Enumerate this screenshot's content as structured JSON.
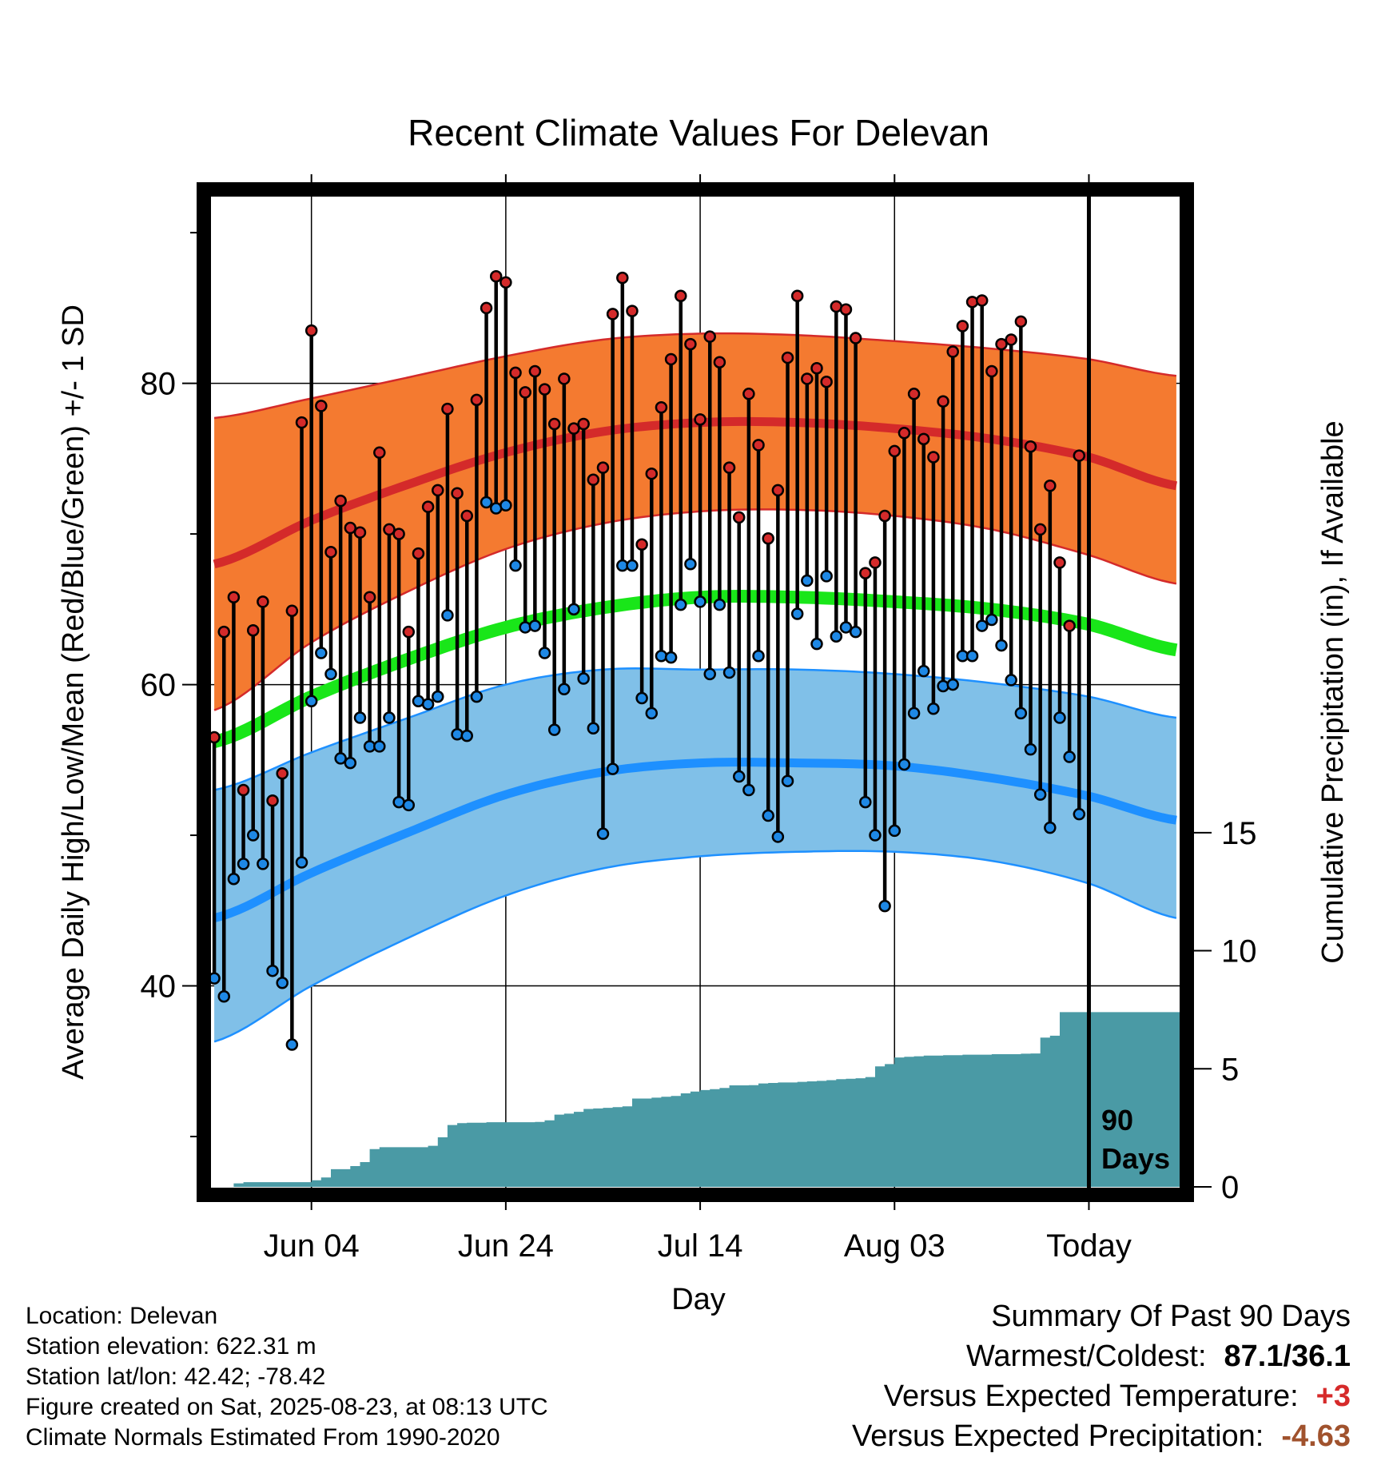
{
  "chart_data": {
    "type": "line",
    "title": "Recent Climate Values For Delevan",
    "xlabel": "Day",
    "ylabel": "Average Daily High/Low/Mean (Red/Blue/Green) +/- 1 SD",
    "y2label": "Cumulative Precipitation (in), If Available",
    "x_ticks": [
      "Jun 04",
      "Jun 24",
      "Jul 14",
      "Aug 03",
      "Today"
    ],
    "x_tick_days": [
      10,
      30,
      50,
      70,
      90
    ],
    "x_range_days": [
      -0.5,
      99.5
    ],
    "ylim": [
      26.5,
      92.5
    ],
    "y_ticks": [
      40,
      60,
      80
    ],
    "y2lim": [
      -0.1,
      42
    ],
    "y2_ticks": [
      0,
      5,
      10,
      15
    ],
    "today_marker": "90\nDays",
    "today_label_line1": "90",
    "today_label_line2": "Days",
    "colors": {
      "normal_high_band": "#f47a30",
      "normal_high_line": "#d42a2a",
      "normal_low_band": "#80c0e8",
      "normal_low_line": "#1e90ff",
      "normal_mean_line": "#19e619",
      "precip_fill": "#4a9aa5",
      "high_dot": "#d42a2a",
      "low_dot": "#1e88e5"
    },
    "normal_high": {
      "days": [
        0,
        10,
        20,
        30,
        40,
        50,
        60,
        70,
        80,
        90,
        99
      ],
      "values": [
        68.0,
        70.9,
        73.3,
        75.4,
        76.8,
        77.4,
        77.4,
        77.0,
        76.3,
        75.1,
        73.2
      ]
    },
    "normal_high_upper": {
      "days": [
        0,
        10,
        20,
        30,
        40,
        50,
        60,
        70,
        80,
        90,
        99
      ],
      "values": [
        77.7,
        79.0,
        80.4,
        81.8,
        82.9,
        83.3,
        83.2,
        82.8,
        82.3,
        81.6,
        80.5
      ]
    },
    "normal_high_lower": {
      "days": [
        0,
        10,
        20,
        30,
        40,
        50,
        60,
        70,
        80,
        90,
        99
      ],
      "values": [
        58.3,
        62.8,
        66.2,
        69.0,
        70.7,
        71.5,
        71.6,
        71.2,
        70.3,
        68.6,
        66.7
      ]
    },
    "normal_mean": {
      "days": [
        0,
        10,
        20,
        30,
        40,
        50,
        60,
        70,
        80,
        90,
        99
      ],
      "values": [
        56.2,
        59.2,
        61.7,
        63.8,
        65.1,
        65.8,
        65.8,
        65.5,
        65.0,
        64.0,
        62.3
      ]
    },
    "normal_low": {
      "days": [
        0,
        10,
        20,
        30,
        40,
        50,
        60,
        70,
        80,
        90,
        99
      ],
      "values": [
        44.5,
        47.5,
        50.2,
        52.7,
        54.2,
        54.8,
        54.8,
        54.6,
        53.8,
        52.6,
        51.0
      ]
    },
    "normal_low_upper": {
      "days": [
        0,
        10,
        20,
        30,
        40,
        50,
        60,
        70,
        80,
        90,
        99
      ],
      "values": [
        53.0,
        55.5,
        57.8,
        60.0,
        61.0,
        61.0,
        61.0,
        60.7,
        60.1,
        59.2,
        57.8
      ]
    },
    "normal_low_lower": {
      "days": [
        0,
        10,
        20,
        30,
        40,
        50,
        60,
        70,
        80,
        90,
        99
      ],
      "values": [
        36.3,
        40.0,
        43.2,
        46.0,
        47.8,
        48.6,
        48.9,
        48.9,
        48.3,
        46.8,
        44.5
      ]
    },
    "series": [
      {
        "name": "High",
        "values": [
          56.5,
          63.5,
          65.8,
          53.0,
          63.6,
          65.5,
          52.3,
          54.1,
          64.9,
          77.4,
          83.5,
          78.5,
          68.8,
          72.2,
          70.4,
          70.1,
          65.8,
          75.4,
          70.3,
          70.0,
          63.5,
          68.7,
          71.8,
          72.9,
          78.3,
          72.7,
          71.2,
          78.9,
          85.0,
          87.1,
          86.7,
          80.7,
          79.4,
          80.8,
          79.6,
          77.3,
          80.3,
          77.0,
          77.3,
          73.6,
          74.4,
          84.6,
          87.0,
          84.8,
          69.3,
          74.0,
          78.4,
          81.6,
          85.8,
          82.6,
          77.6,
          83.1,
          81.4,
          74.4,
          71.1,
          79.3,
          75.9,
          69.7,
          72.9,
          81.7,
          85.8,
          80.3,
          81.0,
          80.1,
          85.1,
          84.9,
          83.0,
          67.4,
          68.1,
          71.2,
          75.5,
          76.7,
          79.3,
          76.3,
          75.1,
          78.8,
          82.1,
          83.8,
          85.4,
          85.5,
          80.8,
          82.6,
          82.9,
          84.1,
          75.8,
          70.3,
          73.2,
          68.1,
          63.9,
          75.2
        ]
      },
      {
        "name": "Low",
        "values": [
          40.5,
          39.3,
          47.1,
          48.1,
          50.0,
          48.1,
          41.0,
          40.2,
          36.1,
          48.2,
          58.9,
          62.1,
          60.7,
          55.1,
          54.8,
          57.8,
          55.9,
          55.9,
          57.8,
          52.2,
          52.0,
          58.9,
          58.7,
          59.2,
          64.6,
          56.7,
          56.6,
          59.2,
          72.1,
          71.7,
          71.9,
          67.9,
          63.8,
          63.9,
          62.1,
          57.0,
          59.7,
          65.0,
          60.4,
          57.1,
          50.1,
          54.4,
          67.9,
          67.9,
          59.1,
          58.1,
          61.9,
          61.8,
          65.3,
          68.0,
          65.5,
          60.7,
          65.3,
          60.8,
          53.9,
          53.0,
          61.9,
          51.3,
          49.9,
          53.6,
          64.7,
          66.9,
          62.7,
          67.2,
          63.2,
          63.8,
          63.5,
          52.2,
          50.0,
          45.3,
          50.3,
          54.7,
          58.1,
          60.9,
          58.4,
          59.9,
          60.0,
          61.9,
          61.9,
          63.9,
          64.3,
          62.6,
          60.3,
          58.1,
          55.7,
          52.7,
          50.5,
          57.8,
          55.2,
          51.4
        ]
      },
      {
        "name": "Cumulative Precipitation",
        "days": [
          2,
          3,
          10,
          11,
          12,
          14,
          15,
          16,
          17,
          22,
          23,
          24,
          25,
          26,
          28,
          33,
          34,
          35,
          36,
          37,
          38,
          39,
          40,
          41,
          42,
          43,
          45,
          46,
          47,
          48,
          49,
          50,
          51,
          52,
          53,
          55,
          56,
          57,
          58,
          60,
          61,
          62,
          63,
          64,
          65,
          66,
          67,
          68,
          69,
          70,
          71,
          72,
          73,
          75,
          77,
          80,
          83,
          84,
          85,
          86,
          87,
          99.5
        ],
        "values": [
          0.15,
          0.2,
          0.28,
          0.4,
          0.75,
          0.88,
          1.05,
          1.6,
          1.68,
          1.74,
          2.1,
          2.62,
          2.7,
          2.72,
          2.74,
          2.75,
          2.82,
          3.06,
          3.1,
          3.18,
          3.3,
          3.32,
          3.35,
          3.38,
          3.41,
          3.74,
          3.78,
          3.82,
          3.85,
          3.96,
          4.04,
          4.1,
          4.14,
          4.19,
          4.3,
          4.31,
          4.38,
          4.4,
          4.42,
          4.45,
          4.47,
          4.49,
          4.52,
          4.56,
          4.58,
          4.6,
          4.65,
          5.1,
          5.2,
          5.48,
          5.51,
          5.53,
          5.56,
          5.58,
          5.6,
          5.62,
          5.64,
          5.65,
          6.32,
          6.4,
          7.4,
          7.45
        ]
      }
    ]
  },
  "info": {
    "location": "Location: Delevan",
    "elevation": "Station elevation: 622.31 m",
    "latlon": "Station lat/lon: 42.42; -78.42",
    "created": "Figure created on Sat, 2025-08-23, at 08:13 UTC",
    "normals": "Climate Normals Estimated From 1990-2020"
  },
  "summary": {
    "heading": "Summary Of Past 90 Days",
    "warmest_label": "Warmest/Coldest:",
    "warmest_value": "87.1/36.1",
    "temp_label": "Versus Expected Temperature:",
    "temp_value": "+3",
    "precip_label": "Versus Expected Precipitation:",
    "precip_value": "-4.63"
  }
}
